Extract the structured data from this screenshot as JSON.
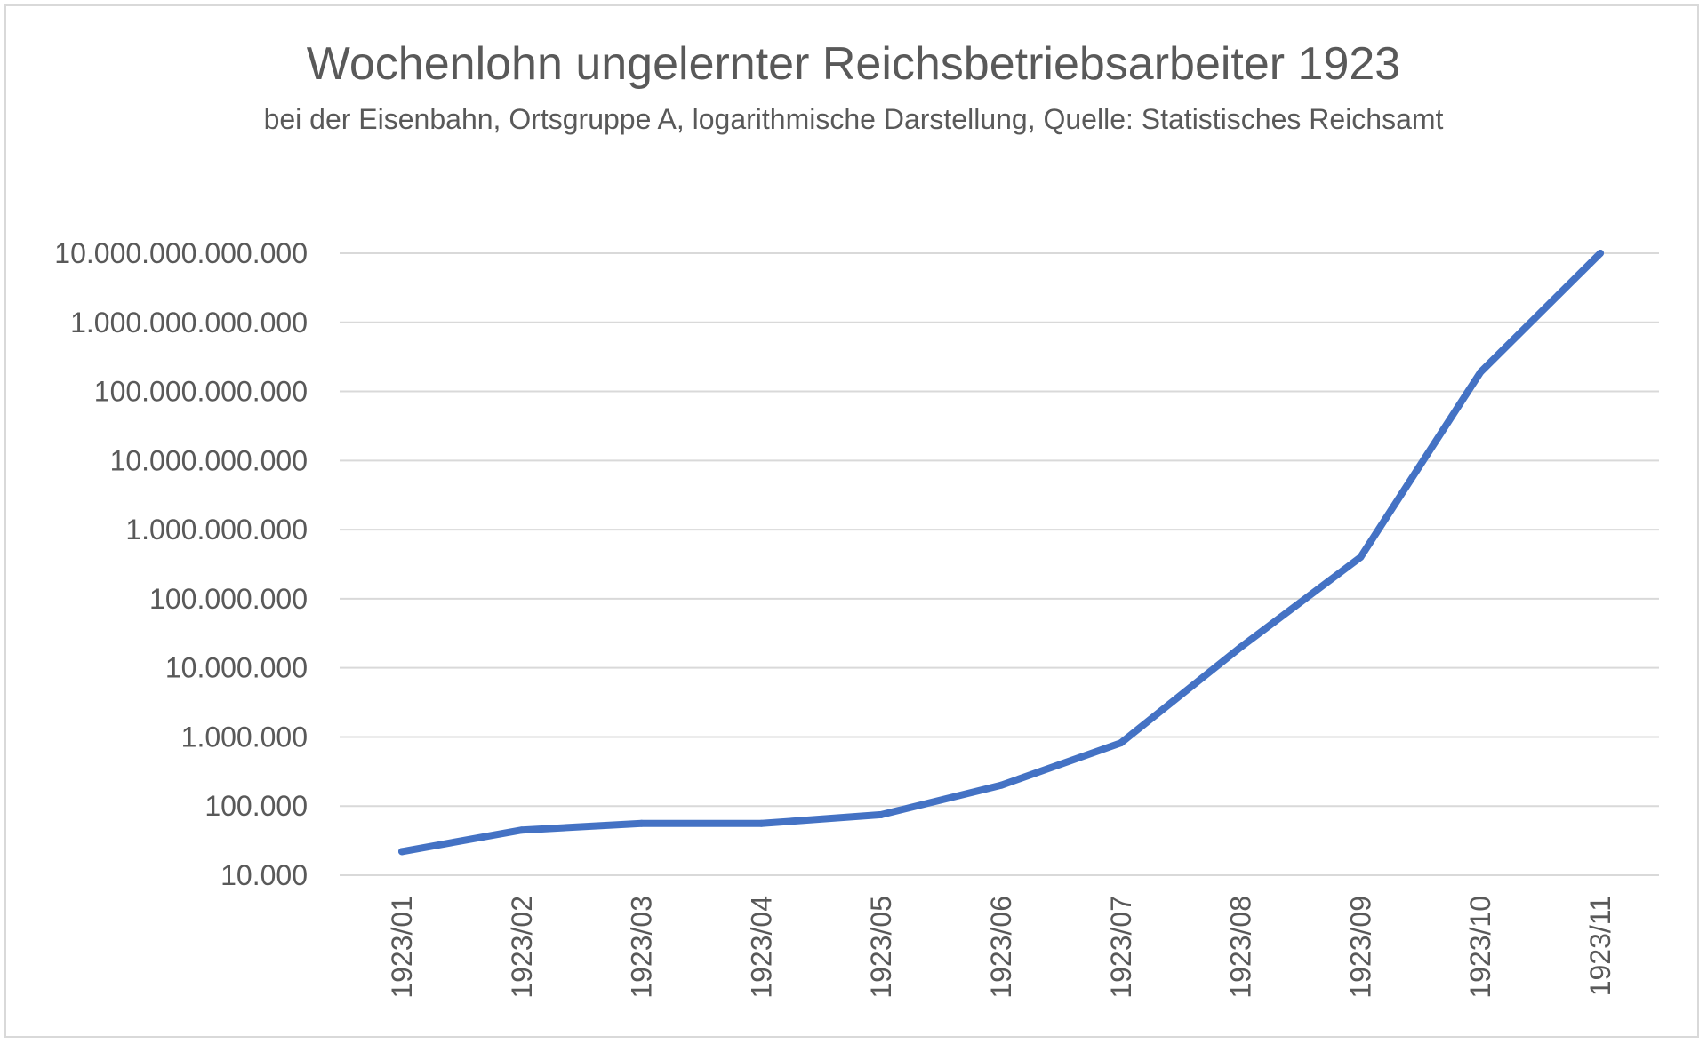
{
  "chart_data": {
    "type": "line",
    "title": "Wochenlohn ungelernter Reichsbetriebsarbeiter 1923",
    "subtitle": "bei der Eisenbahn, Ortsgruppe A, logarithmische Darstellung, Quelle: Statistisches Reichsamt",
    "xlabel": "",
    "ylabel": "",
    "y_scale": "log",
    "ylim": [
      10000,
      10000000000000
    ],
    "y_ticks": [
      {
        "value": 10000,
        "label": "10.000"
      },
      {
        "value": 100000,
        "label": "100.000"
      },
      {
        "value": 1000000,
        "label": "1.000.000"
      },
      {
        "value": 10000000,
        "label": "10.000.000"
      },
      {
        "value": 100000000,
        "label": "100.000.000"
      },
      {
        "value": 1000000000,
        "label": "1.000.000.000"
      },
      {
        "value": 10000000000,
        "label": "10.000.000.000"
      },
      {
        "value": 100000000000,
        "label": "100.000.000.000"
      },
      {
        "value": 1000000000000,
        "label": "1.000.000.000.000"
      },
      {
        "value": 10000000000000,
        "label": "10.000.000.000.000"
      }
    ],
    "grid": true,
    "legend": "none",
    "categories": [
      "1923/01",
      "1923/02",
      "1923/03",
      "1923/04",
      "1923/05",
      "1923/06",
      "1923/07",
      "1923/08",
      "1923/09",
      "1923/10",
      "1923/11"
    ],
    "series": [
      {
        "name": "Wochenlohn",
        "color": "#4472c4",
        "values": [
          22000,
          45000,
          56000,
          56000,
          75000,
          200000,
          820000,
          20000000,
          400000000,
          190000000000,
          10000000000000
        ]
      }
    ]
  }
}
